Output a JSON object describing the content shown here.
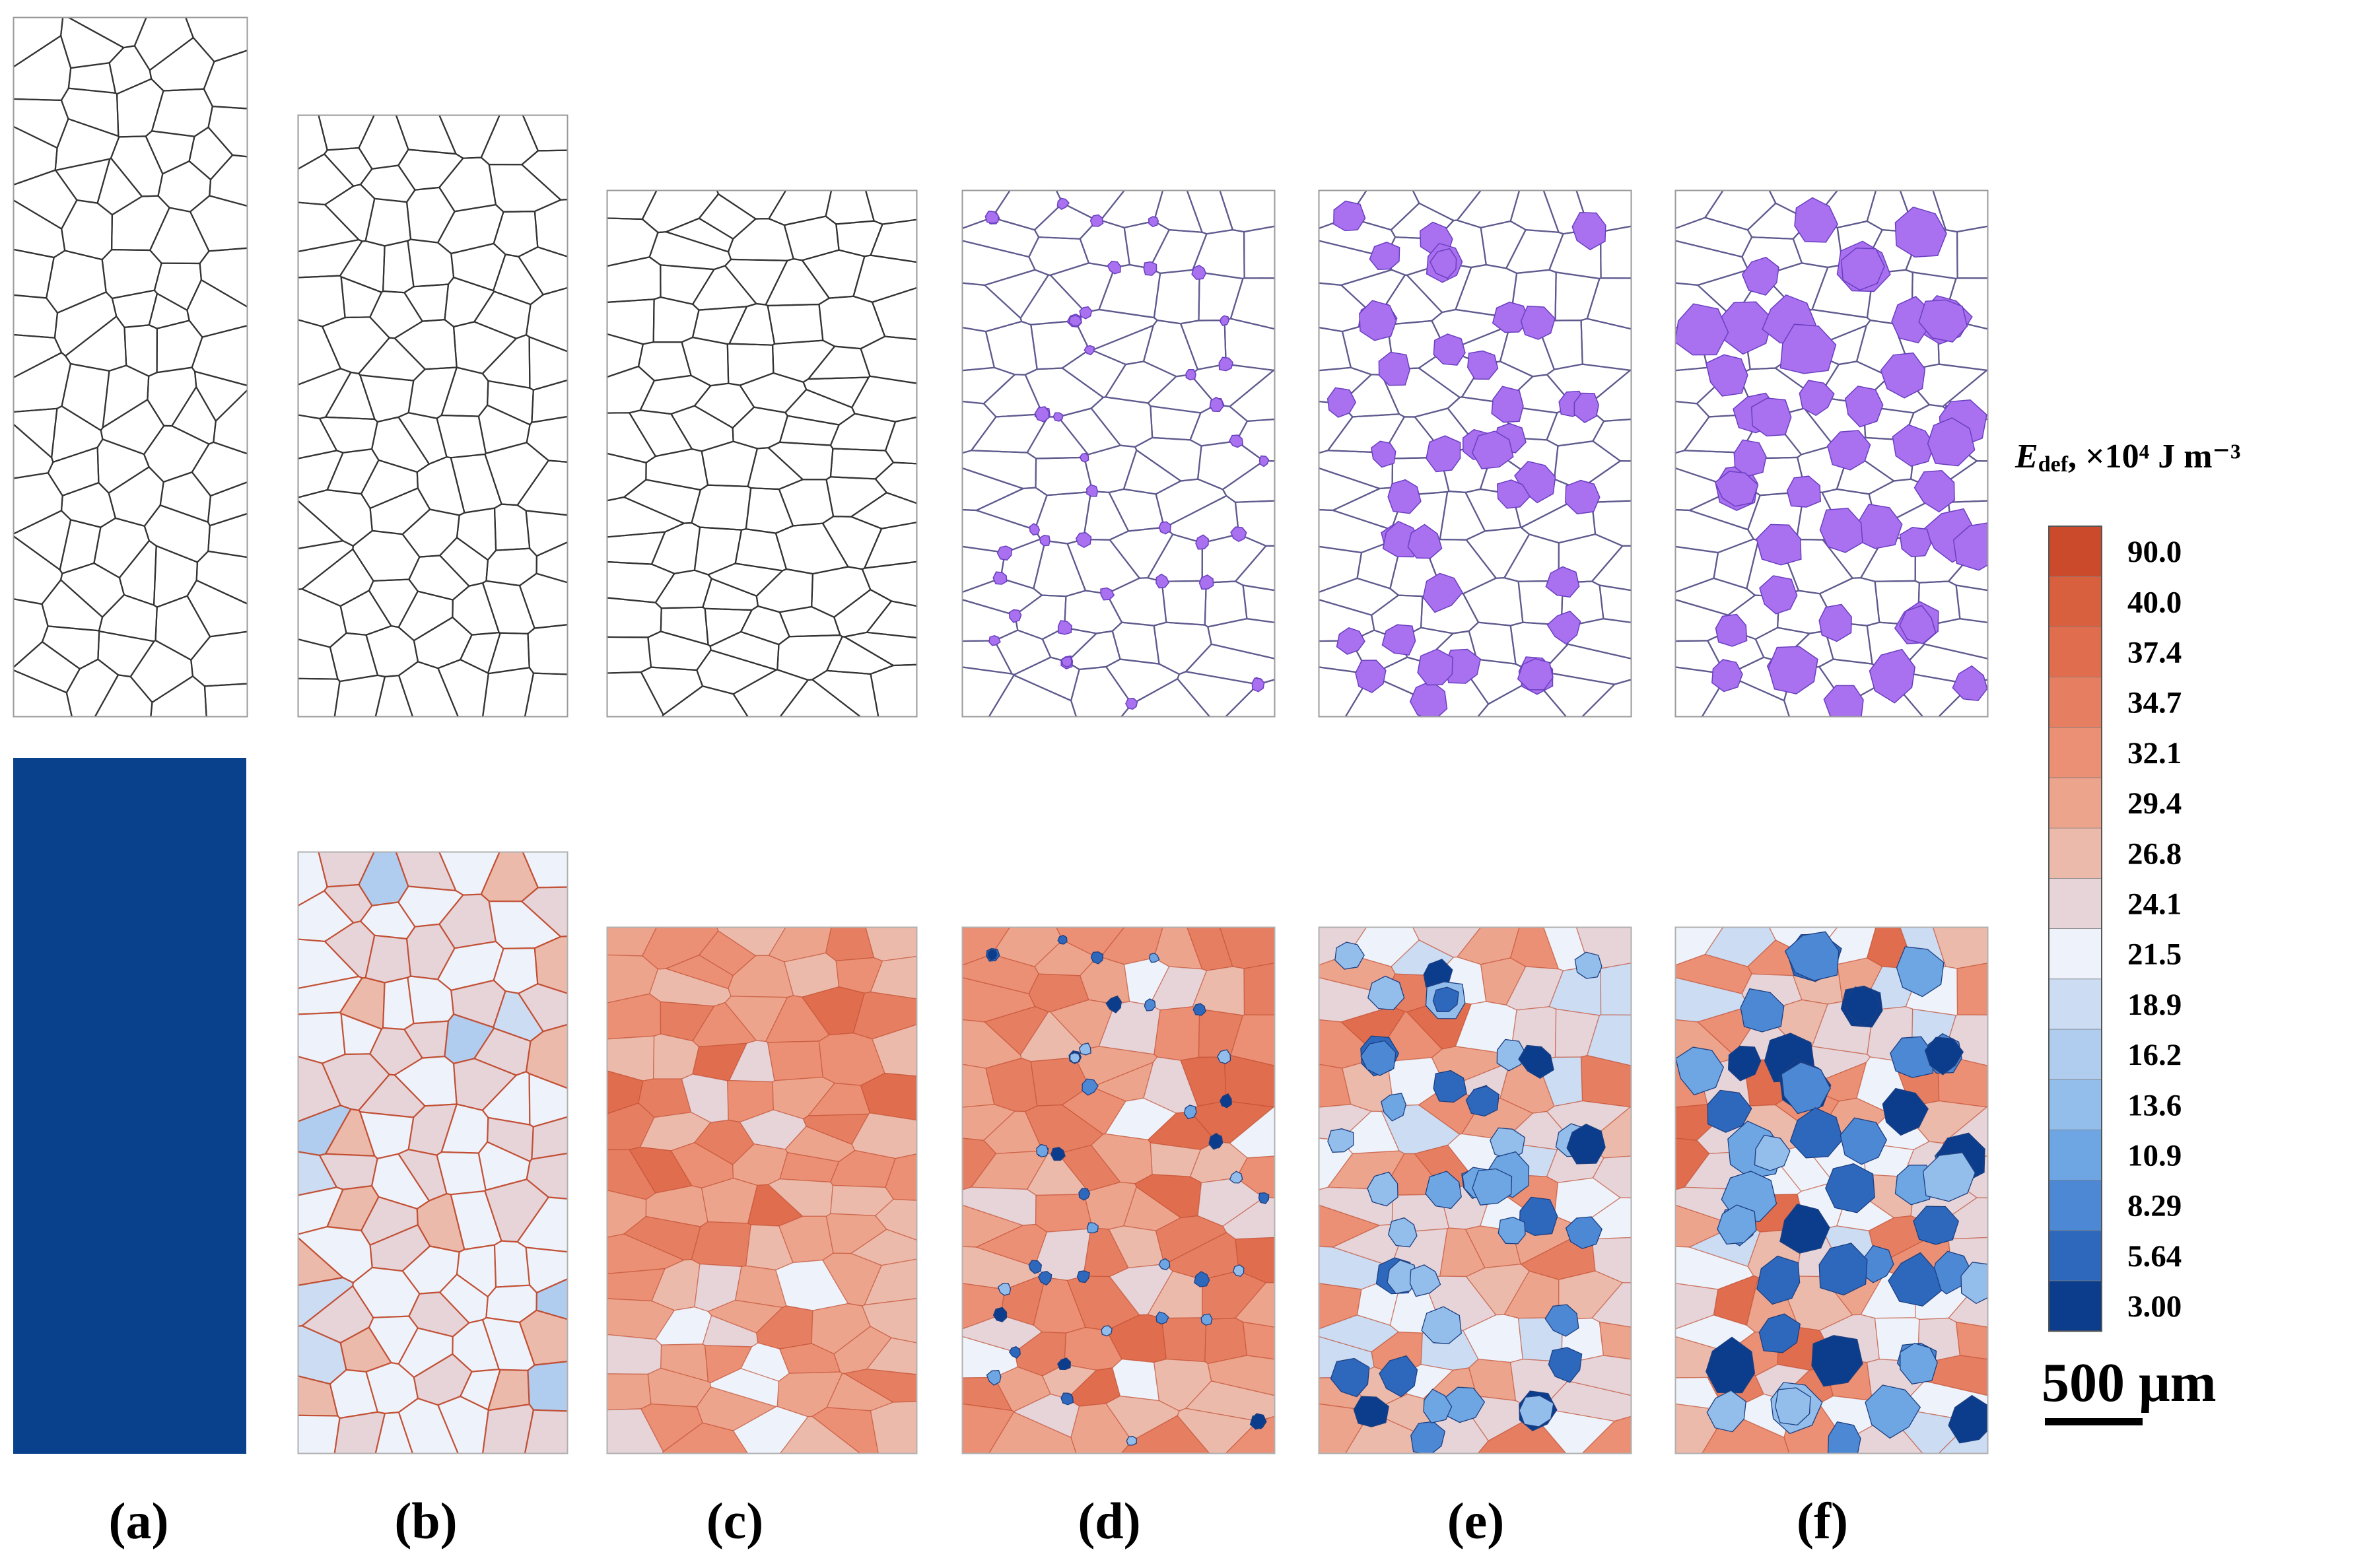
{
  "panels": [
    {
      "label": "(a)",
      "nuclei": 0
    },
    {
      "label": "(b)",
      "nuclei": 0
    },
    {
      "label": "(c)",
      "nuclei": 0
    },
    {
      "label": "(d)",
      "nuclei": 1
    },
    {
      "label": "(e)",
      "nuclei": 2
    },
    {
      "label": "(f)",
      "nuclei": 3
    }
  ],
  "colorbar": {
    "title_symbol": "E",
    "title_subscript": "def",
    "title_unit": ", ×10⁴ J m⁻³",
    "labels": [
      "90.0",
      "40.0",
      "37.4",
      "34.7",
      "32.1",
      "29.4",
      "26.8",
      "24.1",
      "21.5",
      "18.9",
      "16.2",
      "13.6",
      "10.9",
      "8.29",
      "5.64",
      "3.00"
    ],
    "colors": [
      "#cc4a2c",
      "#d9603e",
      "#e06d4e",
      "#e67f62",
      "#eb9075",
      "#eda48d",
      "#ecbaab",
      "#e6d4d9",
      "#eef3fb",
      "#cbdcf3",
      "#b0cdef",
      "#93bdeb",
      "#6ea6e4",
      "#4d88d5",
      "#2e68bd",
      "#0c3d8c"
    ]
  },
  "scale_bar": {
    "label": "500 μm"
  },
  "colors": {
    "nucleus_fill": "#a970f0",
    "nucleus_stroke": "#6a3fc0",
    "panel_a_energy": "#0a418c",
    "boundary_map_line": "#333333",
    "boundary_map_line_purple": "#5e5a8e",
    "energy_boundary_line": "#c0492c"
  }
}
